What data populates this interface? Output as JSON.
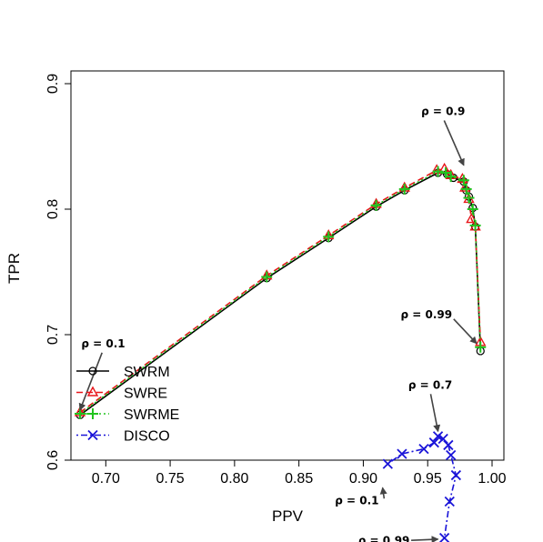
{
  "chart_data": {
    "type": "line",
    "xlabel": "PPV",
    "ylabel": "TPR",
    "xlim": [
      0.68,
      1.0
    ],
    "ylim": [
      0.6,
      0.9
    ],
    "x_ticks": [
      0.7,
      0.75,
      0.8,
      0.85,
      0.9,
      0.95,
      1.0
    ],
    "x_tick_labels": [
      "0.70",
      "0.75",
      "0.80",
      "0.85",
      "0.90",
      "0.95",
      "1.00"
    ],
    "y_ticks": [
      0.6,
      0.7,
      0.8,
      0.9
    ],
    "y_tick_labels": [
      "0.6",
      "0.7",
      "0.8",
      "0.9"
    ],
    "legend_position": "bottom-left",
    "series": [
      {
        "name": "SWRM",
        "color": "#000000",
        "marker": "circle",
        "dash": "solid",
        "x": [
          0.68,
          0.825,
          0.873,
          0.91,
          0.932,
          0.958,
          0.965,
          0.97,
          0.978,
          0.98,
          0.982,
          0.985,
          0.987,
          0.991
        ],
        "y": [
          0.636,
          0.745,
          0.777,
          0.802,
          0.815,
          0.829,
          0.828,
          0.825,
          0.822,
          0.815,
          0.81,
          0.801,
          0.786,
          0.687
        ]
      },
      {
        "name": "SWRE",
        "color": "#e8161a",
        "marker": "triangle",
        "dash": "dashed",
        "x": [
          0.68,
          0.825,
          0.873,
          0.91,
          0.932,
          0.957,
          0.963,
          0.968,
          0.977,
          0.979,
          0.982,
          0.984,
          0.987,
          0.991
        ],
        "y": [
          0.638,
          0.747,
          0.779,
          0.804,
          0.817,
          0.831,
          0.832,
          0.827,
          0.824,
          0.817,
          0.808,
          0.792,
          0.786,
          0.694
        ]
      },
      {
        "name": "SWRME",
        "color": "#22c41e",
        "marker": "plus",
        "dash": "dotted",
        "x": [
          0.68,
          0.825,
          0.873,
          0.91,
          0.932,
          0.958,
          0.964,
          0.968,
          0.978,
          0.98,
          0.982,
          0.985,
          0.987,
          0.991
        ],
        "y": [
          0.637,
          0.746,
          0.778,
          0.803,
          0.816,
          0.83,
          0.829,
          0.826,
          0.823,
          0.816,
          0.809,
          0.8,
          0.787,
          0.69
        ]
      },
      {
        "name": "DISCO",
        "color": "#1a14d8",
        "marker": "x",
        "dash": "dotdash",
        "x": [
          0.919,
          0.93,
          0.947,
          0.955,
          0.958,
          0.962,
          0.966,
          0.968,
          0.972,
          0.967,
          0.963
        ],
        "y": [
          0.597,
          0.605,
          0.609,
          0.614,
          0.619,
          0.617,
          0.612,
          0.604,
          0.588,
          0.567,
          0.538
        ]
      }
    ],
    "annotations": [
      {
        "label": "ρ = 0.1",
        "text_x": 0.698,
        "text_y": 0.69,
        "arrow_x": 0.68,
        "arrow_y": 0.64
      },
      {
        "label": "ρ = 0.9",
        "text_x": 0.962,
        "text_y": 0.875,
        "arrow_x": 0.978,
        "arrow_y": 0.835
      },
      {
        "label": "ρ = 0.99",
        "text_x": 0.949,
        "text_y": 0.713,
        "arrow_x": 0.988,
        "arrow_y": 0.693
      },
      {
        "label": "ρ = 0.7",
        "text_x": 0.952,
        "text_y": 0.657,
        "arrow_x": 0.958,
        "arrow_y": 0.623
      },
      {
        "label": "ρ = 0.1",
        "text_x": 0.895,
        "text_y": 0.565,
        "arrow_x": 0.915,
        "arrow_y": 0.578
      },
      {
        "label": "ρ = 0.99",
        "text_x": 0.916,
        "text_y": 0.533,
        "arrow_x": 0.958,
        "arrow_y": 0.537
      }
    ]
  }
}
